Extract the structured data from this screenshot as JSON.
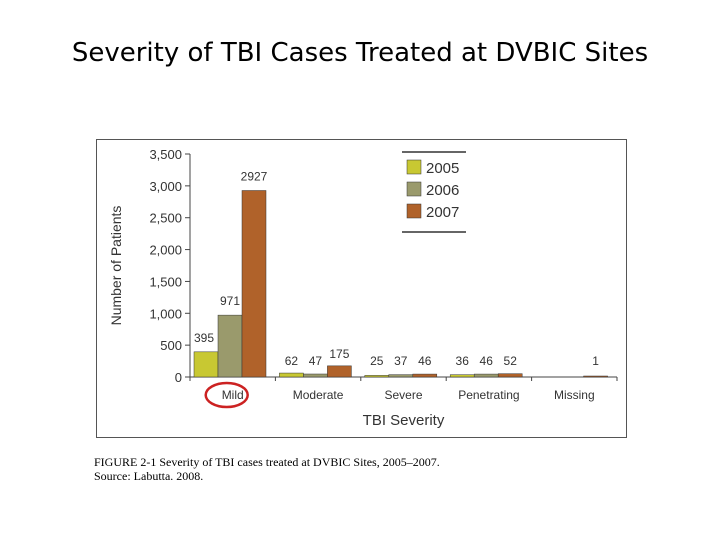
{
  "slide": {
    "title": "Severity of TBI Cases Treated at DVBIC Sites"
  },
  "caption": {
    "line1": "FIGURE 2-1   Severity of TBI cases treated at DVBIC Sites, 2005–2007.",
    "line2": "Source:  Labutta. 2008."
  },
  "chart_data": {
    "type": "bar",
    "title": "",
    "xlabel": "TBI Severity",
    "ylabel": "Number of Patients",
    "ylim": [
      0,
      3500
    ],
    "yticks": [
      0,
      500,
      1000,
      1500,
      2000,
      2500,
      3000,
      3500
    ],
    "ytick_labels": [
      "0",
      "500",
      "1,000",
      "1,500",
      "2,000",
      "2,500",
      "3,000",
      "3,500"
    ],
    "categories": [
      "Mild",
      "Moderate",
      "Severe",
      "Penetrating",
      "Missing"
    ],
    "series": [
      {
        "name": "2005",
        "color": "#c8c832",
        "values": [
          395,
          62,
          25,
          36,
          0
        ],
        "labels": [
          "395",
          "62",
          "25",
          "36",
          ""
        ]
      },
      {
        "name": "2006",
        "color": "#9a9a6c",
        "values": [
          971,
          47,
          37,
          46,
          0
        ],
        "labels": [
          "971",
          "47",
          "37",
          "46",
          ""
        ]
      },
      {
        "name": "2007",
        "color": "#b0622a",
        "values": [
          2927,
          175,
          46,
          52,
          1
        ],
        "labels": [
          "2927",
          "175",
          "46",
          "52",
          "1"
        ]
      }
    ],
    "legend": {
      "placement": "top-right"
    },
    "grid": false,
    "highlighted_category": "Mild",
    "highlight_color": "#cc2222"
  }
}
